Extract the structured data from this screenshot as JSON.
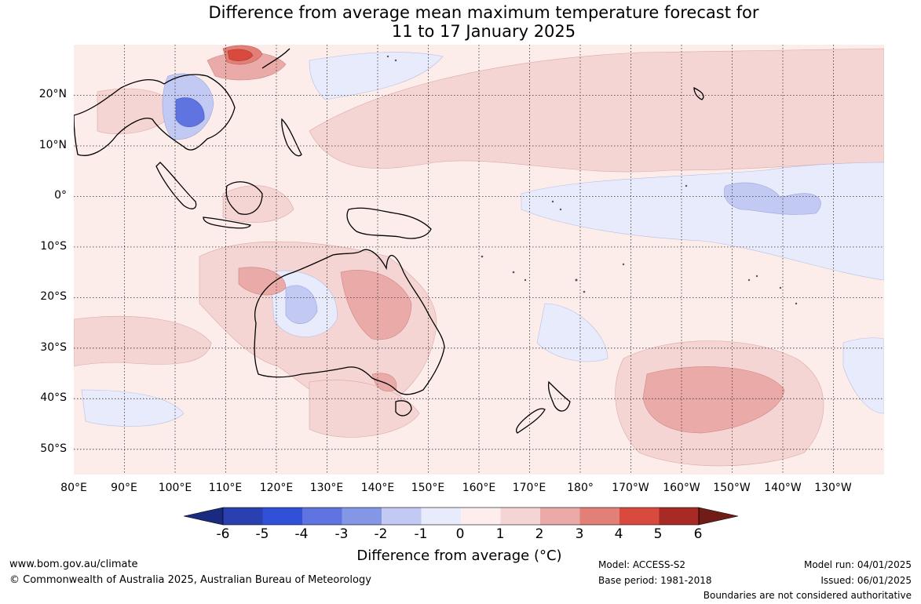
{
  "title": {
    "line1": "Difference from average mean maximum temperature forecast for",
    "line2": "11 to 17 January 2025"
  },
  "map": {
    "lat_labels": [
      "20°N",
      "10°N",
      "0°",
      "10°S",
      "20°S",
      "30°S",
      "40°S",
      "50°S"
    ],
    "lon_labels": [
      "80°E",
      "90°E",
      "100°E",
      "110°E",
      "120°E",
      "130°E",
      "140°E",
      "150°E",
      "160°E",
      "170°E",
      "180°",
      "170°W",
      "160°W",
      "150°W",
      "140°W",
      "130°W"
    ],
    "extent": {
      "lon_min": 80,
      "lon_max": 240,
      "lat_min": -55,
      "lat_max": 30
    }
  },
  "legend": {
    "ticks": [
      "-6",
      "-5",
      "-4",
      "-3",
      "-2",
      "-1",
      "0",
      "1",
      "2",
      "3",
      "4",
      "5",
      "6"
    ],
    "colors": [
      "#1a2a80",
      "#2a3fb0",
      "#3050d8",
      "#5f74e0",
      "#8496e6",
      "#c2c9f3",
      "#e8ebfb",
      "#fdeeed",
      "#f5d5d3",
      "#eaaaa8",
      "#e28078",
      "#d84a3e",
      "#a82a24",
      "#701d18"
    ],
    "caption": "Difference from average (°C)"
  },
  "footer": {
    "website": "www.bom.gov.au/climate",
    "copyright": "© Commonwealth of Australia 2025, Australian Bureau of Meteorology",
    "model": "Model: ACCESS-S2",
    "base_period": "Base period: 1981-2018",
    "model_run": "Model run: 04/01/2025",
    "issued": "Issued: 06/01/2025",
    "boundaries": "Boundaries are not considered authoritative"
  }
}
